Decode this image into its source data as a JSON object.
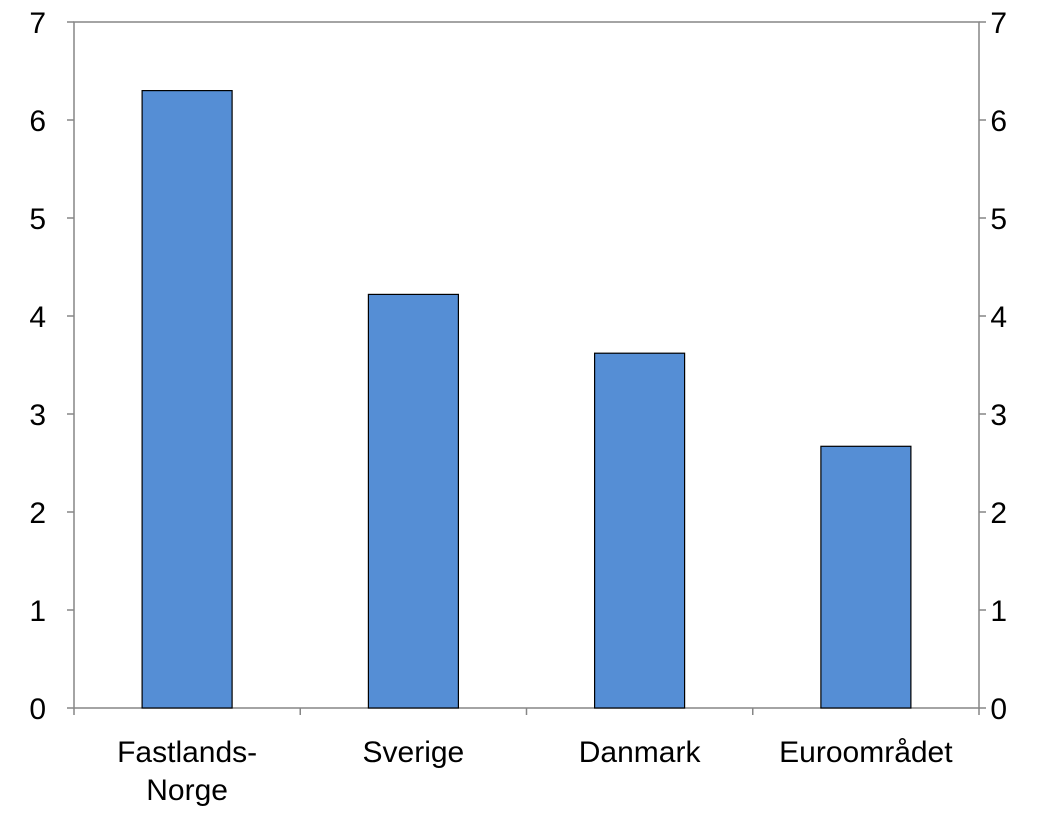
{
  "chart_data": {
    "type": "bar",
    "title": "",
    "xlabel": "",
    "ylabel": "",
    "categories": [
      [
        "Fastlands-",
        "Norge"
      ],
      [
        "Sverige"
      ],
      [
        "Danmark"
      ],
      [
        "Euroområdet"
      ]
    ],
    "values": [
      6.3,
      4.22,
      3.62,
      2.67
    ],
    "ylim": [
      0,
      7
    ],
    "yticks": [
      "0",
      "1",
      "2",
      "3",
      "4",
      "5",
      "6",
      "7"
    ],
    "secondary_yticks": [
      "0",
      "1",
      "2",
      "3",
      "4",
      "5",
      "6",
      "7"
    ],
    "grid": false,
    "legend": "none",
    "colors": {
      "bar_fill": "#558ED5",
      "bar_stroke": "#000000",
      "axis": "#868686",
      "text": "#000000"
    }
  }
}
